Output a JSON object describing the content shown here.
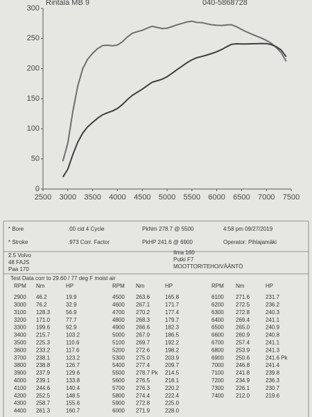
{
  "header": {
    "name": "Rintala MB 9",
    "phone": "040-5868728"
  },
  "chart_data": {
    "type": "line",
    "x": [
      2900,
      3000,
      3100,
      3200,
      3300,
      3400,
      3500,
      3600,
      3700,
      3800,
      3900,
      4000,
      4100,
      4200,
      4300,
      4400,
      4500,
      4600,
      4700,
      4800,
      4900,
      5000,
      5100,
      5200,
      5300,
      5400,
      5500,
      5600,
      5700,
      5800,
      5900,
      6000,
      6100,
      6200,
      6300,
      6400,
      6500,
      6600,
      6700,
      6800,
      6900,
      7000,
      7100,
      7200,
      7300,
      7400
    ],
    "series": [
      {
        "name": "Nm",
        "color": "#6e6e6e",
        "values": [
          46.2,
          76.2,
          128.3,
          171.0,
          199.6,
          215.7,
          225.3,
          233.2,
          238.1,
          238.8,
          237.9,
          239.1,
          244.6,
          252.5,
          258.7,
          261.3,
          263.6,
          267.1,
          270.2,
          268.3,
          266.6,
          267.0,
          269.7,
          272.6,
          275.0,
          277.4,
          278.7,
          276.5,
          276.3,
          274.4,
          272.8,
          271.9,
          271.6,
          272.5,
          272.8,
          269.4,
          265.0,
          260.9,
          257.4,
          253.9,
          250.6,
          246.8,
          241.8,
          234.9,
          226.1,
          212.0
        ]
      },
      {
        "name": "HP",
        "color": "#3e3e3e",
        "values": [
          19.9,
          32.9,
          56.9,
          77.7,
          92.9,
          103.2,
          110.6,
          117.6,
          123.2,
          126.7,
          129.6,
          133.8,
          140.4,
          148.5,
          155.6,
          160.7,
          165.8,
          171.7,
          177.4,
          179.7,
          182.3,
          186.5,
          192.2,
          198.2,
          203.9,
          209.7,
          214.5,
          218.1,
          220.2,
          222.4,
          225.0,
          228.0,
          231.7,
          236.2,
          240.3,
          241.1,
          240.9,
          240.8,
          241.1,
          241.3,
          241.6,
          241.4,
          239.8,
          236.3,
          230.7,
          219.6
        ]
      }
    ],
    "xlim": [
      2500,
      7500
    ],
    "xticks": [
      2500,
      3000,
      3500,
      4000,
      4500,
      5000,
      5500,
      6000,
      6500,
      7000,
      7500
    ],
    "ylim": [
      0,
      300
    ],
    "yticks": [
      0,
      50,
      100,
      150,
      200,
      250,
      300
    ],
    "grid": false
  },
  "info": {
    "row1": [
      "* Bore",
      ".00 cid  4 Cycle",
      "PkNm 278.7 @ 5500",
      "4:58 pm  09/27/2019"
    ],
    "row2": [
      "* Stroke",
      ".973 Corr. Factor",
      "PkHP 241.6 @ 6900",
      "Operator: Pihlajamäki"
    ],
    "left": [
      "2.5 Volvo",
      "48 FAJS",
      "Paa 170"
    ],
    "right": [
      "Ilma 160",
      "Putki F7",
      "MOOTTORITEHO/VÄÄNTÖ"
    ]
  },
  "table": {
    "caption": "Test Data  corr to 29.60 / 77 deg F moist air",
    "headers": [
      "RPM",
      "Nm",
      "HP"
    ],
    "rows": [
      [
        "2900",
        "46.2",
        "19.9"
      ],
      [
        "3000",
        "76.2",
        "32.9"
      ],
      [
        "3100",
        "128.3",
        "56.9"
      ],
      [
        "3200",
        "171.0",
        "77.7"
      ],
      [
        "3300",
        "199.6",
        "92.9"
      ],
      [
        "3400",
        "215.7",
        "103.2"
      ],
      [
        "3500",
        "225.3",
        "110.6"
      ],
      [
        "3600",
        "233.2",
        "117.6"
      ],
      [
        "3700",
        "238.1",
        "123.2"
      ],
      [
        "3800",
        "238.8",
        "126.7"
      ],
      [
        "3900",
        "237.9",
        "129.6"
      ],
      [
        "4000",
        "239.1",
        "133.8"
      ],
      [
        "4100",
        "244.6",
        "140.4"
      ],
      [
        "4200",
        "252.5",
        "148.5"
      ],
      [
        "4300",
        "258.7",
        "155.6"
      ],
      [
        "4400",
        "261.3",
        "160.7"
      ],
      [
        "4500",
        "263.6",
        "165.8"
      ],
      [
        "4600",
        "267.1",
        "171.7"
      ],
      [
        "4700",
        "270.2",
        "177.4"
      ],
      [
        "4800",
        "268.3",
        "179.7"
      ],
      [
        "4900",
        "266.6",
        "182.3"
      ],
      [
        "5000",
        "267.0",
        "186.5"
      ],
      [
        "5100",
        "269.7",
        "192.2"
      ],
      [
        "5200",
        "272.6",
        "198.2"
      ],
      [
        "5300",
        "275.0",
        "203.9"
      ],
      [
        "5400",
        "277.4",
        "209.7"
      ],
      [
        "5500",
        "278.7 Pk",
        "214.5"
      ],
      [
        "5600",
        "276.5",
        "218.1"
      ],
      [
        "5700",
        "276.3",
        "220.2"
      ],
      [
        "5800",
        "274.4",
        "222.4"
      ],
      [
        "5900",
        "272.8",
        "225.0"
      ],
      [
        "6000",
        "271.9",
        "228.0"
      ],
      [
        "6100",
        "271.6",
        "231.7"
      ],
      [
        "6200",
        "272.5",
        "236.2"
      ],
      [
        "6300",
        "272.8",
        "240.3"
      ],
      [
        "6400",
        "269.4",
        "241.1"
      ],
      [
        "6500",
        "265.0",
        "240.9"
      ],
      [
        "6600",
        "260.9",
        "240.8"
      ],
      [
        "6700",
        "257.4",
        "241.1"
      ],
      [
        "6800",
        "253.9",
        "241.3"
      ],
      [
        "6900",
        "250.6",
        "241.6 Pk"
      ],
      [
        "7000",
        "246.8",
        "241.4"
      ],
      [
        "7100",
        "241.8",
        "239.8"
      ],
      [
        "7200",
        "234.9",
        "236.3"
      ],
      [
        "7300",
        "226.1",
        "230.7"
      ],
      [
        "7400",
        "212.0",
        "219.6"
      ]
    ]
  }
}
